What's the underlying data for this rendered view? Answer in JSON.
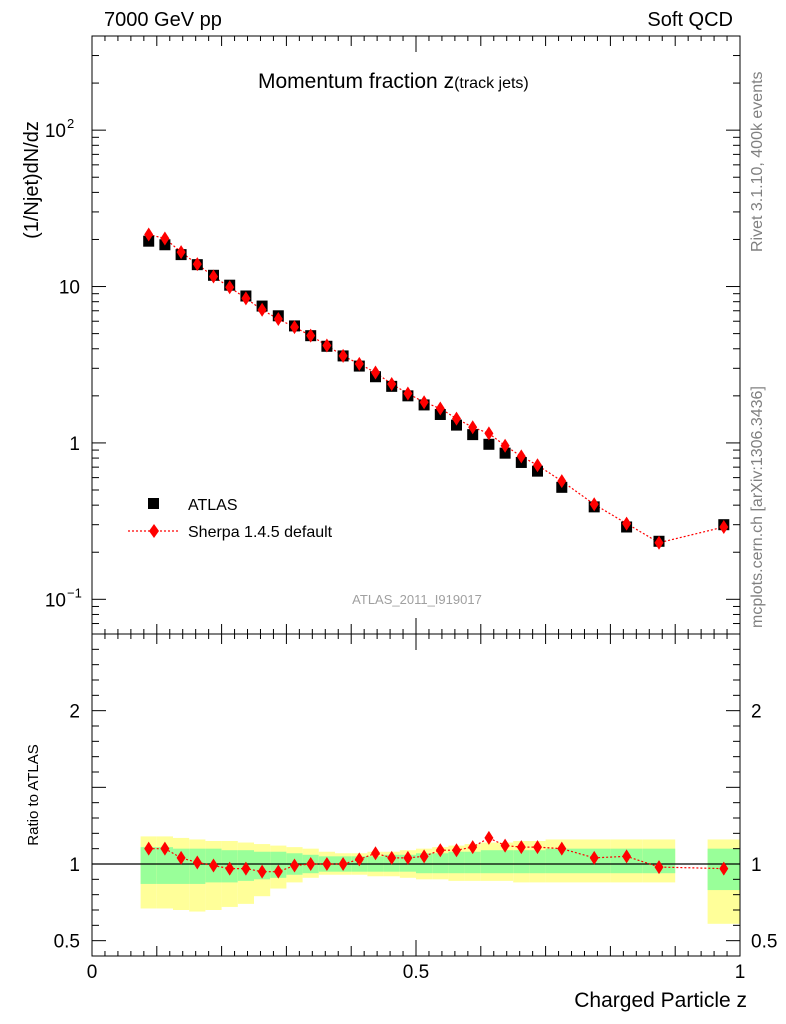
{
  "header": {
    "energy": "7000 GeV pp",
    "process": "Soft QCD"
  },
  "side": {
    "rivet": "Rivet 3.1.10,  400k events",
    "source": "mcplots.cern.ch [arXiv:1306.3436]"
  },
  "legend": {
    "data_label": "ATLAS",
    "mc_label": "Sherpa 1.4.5 default"
  },
  "ref_name": "ATLAS_2011_I919017",
  "colors": {
    "data": "#000000",
    "mc": "#ff0000",
    "band_inner": "#99ff99",
    "band_outer": "#ffff99"
  },
  "chart_data": [
    {
      "type": "scatter",
      "title_main": "Momentum fraction ",
      "title_z": "z",
      "title_sub": "(track jets)",
      "ylabel": "(1/Njet)dN/dz",
      "xlabel": "Charged Particle z",
      "yscale": "log",
      "xlim": [
        0,
        1
      ],
      "ylim": [
        0.06,
        400
      ],
      "xticks": [
        {
          "v": 0,
          "label": "0"
        },
        {
          "v": 0.5,
          "label": "0.5"
        },
        {
          "v": 1,
          "label": "1"
        }
      ],
      "yticks": [
        {
          "v": 0.1,
          "base": "10",
          "exp": "−1"
        },
        {
          "v": 1,
          "label": "1"
        },
        {
          "v": 10,
          "label": "10"
        },
        {
          "v": 100,
          "base": "10",
          "exp": "2"
        }
      ],
      "x": [
        0.0875,
        0.1125,
        0.1375,
        0.1625,
        0.1875,
        0.2125,
        0.2375,
        0.2625,
        0.2875,
        0.3125,
        0.3375,
        0.3625,
        0.3875,
        0.4125,
        0.4375,
        0.4625,
        0.4875,
        0.5125,
        0.5375,
        0.5625,
        0.5875,
        0.6125,
        0.6375,
        0.6625,
        0.6875,
        0.725,
        0.775,
        0.825,
        0.875,
        0.975
      ],
      "series": [
        {
          "name": "ATLAS",
          "values": [
            19.5,
            18.5,
            16.0,
            13.8,
            11.8,
            10.2,
            8.7,
            7.5,
            6.5,
            5.6,
            4.85,
            4.15,
            3.6,
            3.1,
            2.65,
            2.3,
            2.0,
            1.75,
            1.52,
            1.3,
            1.13,
            0.98,
            0.86,
            0.75,
            0.66,
            0.52,
            0.39,
            0.29,
            0.235,
            0.3
          ]
        },
        {
          "name": "Sherpa 1.4.5 default",
          "values": [
            21.5,
            20.3,
            16.6,
            13.9,
            11.6,
            9.9,
            8.4,
            7.1,
            6.2,
            5.5,
            4.85,
            4.2,
            3.6,
            3.2,
            2.82,
            2.38,
            2.07,
            1.82,
            1.66,
            1.43,
            1.26,
            1.15,
            0.96,
            0.82,
            0.72,
            0.57,
            0.405,
            0.305,
            0.23,
            0.29
          ]
        }
      ]
    },
    {
      "type": "scatter",
      "ylabel": "Ratio to ATLAS",
      "ylim": [
        0.4,
        2.5
      ],
      "yticks": [
        {
          "v": 0.5,
          "label": "0.5"
        },
        {
          "v": 1,
          "label": "1"
        },
        {
          "v": 2,
          "label": "2"
        }
      ],
      "bins": [
        {
          "lo": 0.075,
          "hi": 0.1,
          "in_lo": 0.87,
          "in_hi": 1.11,
          "out_lo": 0.71,
          "out_hi": 1.18
        },
        {
          "lo": 0.1,
          "hi": 0.125,
          "in_lo": 0.87,
          "in_hi": 1.11,
          "out_lo": 0.71,
          "out_hi": 1.18
        },
        {
          "lo": 0.125,
          "hi": 0.15,
          "in_lo": 0.87,
          "in_hi": 1.1,
          "out_lo": 0.7,
          "out_hi": 1.17
        },
        {
          "lo": 0.15,
          "hi": 0.175,
          "in_lo": 0.87,
          "in_hi": 1.1,
          "out_lo": 0.69,
          "out_hi": 1.16
        },
        {
          "lo": 0.175,
          "hi": 0.2,
          "in_lo": 0.88,
          "in_hi": 1.1,
          "out_lo": 0.7,
          "out_hi": 1.15
        },
        {
          "lo": 0.2,
          "hi": 0.225,
          "in_lo": 0.88,
          "in_hi": 1.09,
          "out_lo": 0.72,
          "out_hi": 1.15
        },
        {
          "lo": 0.225,
          "hi": 0.25,
          "in_lo": 0.89,
          "in_hi": 1.09,
          "out_lo": 0.74,
          "out_hi": 1.14
        },
        {
          "lo": 0.25,
          "hi": 0.275,
          "in_lo": 0.9,
          "in_hi": 1.08,
          "out_lo": 0.79,
          "out_hi": 1.13
        },
        {
          "lo": 0.275,
          "hi": 0.3,
          "in_lo": 0.91,
          "in_hi": 1.08,
          "out_lo": 0.84,
          "out_hi": 1.12
        },
        {
          "lo": 0.3,
          "hi": 0.325,
          "in_lo": 0.93,
          "in_hi": 1.07,
          "out_lo": 0.88,
          "out_hi": 1.11
        },
        {
          "lo": 0.325,
          "hi": 0.35,
          "in_lo": 0.94,
          "in_hi": 1.06,
          "out_lo": 0.91,
          "out_hi": 1.1
        },
        {
          "lo": 0.35,
          "hi": 0.375,
          "in_lo": 0.95,
          "in_hi": 1.05,
          "out_lo": 0.93,
          "out_hi": 1.08
        },
        {
          "lo": 0.375,
          "hi": 0.4,
          "in_lo": 0.95,
          "in_hi": 1.05,
          "out_lo": 0.93,
          "out_hi": 1.07
        },
        {
          "lo": 0.4,
          "hi": 0.425,
          "in_lo": 0.95,
          "in_hi": 1.05,
          "out_lo": 0.93,
          "out_hi": 1.07
        },
        {
          "lo": 0.425,
          "hi": 0.45,
          "in_lo": 0.95,
          "in_hi": 1.05,
          "out_lo": 0.92,
          "out_hi": 1.08
        },
        {
          "lo": 0.45,
          "hi": 0.475,
          "in_lo": 0.95,
          "in_hi": 1.06,
          "out_lo": 0.92,
          "out_hi": 1.08
        },
        {
          "lo": 0.475,
          "hi": 0.5,
          "in_lo": 0.95,
          "in_hi": 1.06,
          "out_lo": 0.91,
          "out_hi": 1.09
        },
        {
          "lo": 0.5,
          "hi": 0.525,
          "in_lo": 0.94,
          "in_hi": 1.07,
          "out_lo": 0.9,
          "out_hi": 1.1
        },
        {
          "lo": 0.525,
          "hi": 0.55,
          "in_lo": 0.94,
          "in_hi": 1.07,
          "out_lo": 0.9,
          "out_hi": 1.11
        },
        {
          "lo": 0.55,
          "hi": 0.575,
          "in_lo": 0.94,
          "in_hi": 1.08,
          "out_lo": 0.89,
          "out_hi": 1.12
        },
        {
          "lo": 0.575,
          "hi": 0.6,
          "in_lo": 0.94,
          "in_hi": 1.08,
          "out_lo": 0.89,
          "out_hi": 1.13
        },
        {
          "lo": 0.6,
          "hi": 0.625,
          "in_lo": 0.94,
          "in_hi": 1.09,
          "out_lo": 0.89,
          "out_hi": 1.14
        },
        {
          "lo": 0.625,
          "hi": 0.65,
          "in_lo": 0.94,
          "in_hi": 1.09,
          "out_lo": 0.89,
          "out_hi": 1.14
        },
        {
          "lo": 0.65,
          "hi": 0.675,
          "in_lo": 0.94,
          "in_hi": 1.09,
          "out_lo": 0.88,
          "out_hi": 1.15
        },
        {
          "lo": 0.675,
          "hi": 0.7,
          "in_lo": 0.94,
          "in_hi": 1.09,
          "out_lo": 0.88,
          "out_hi": 1.15
        },
        {
          "lo": 0.7,
          "hi": 0.75,
          "in_lo": 0.94,
          "in_hi": 1.1,
          "out_lo": 0.88,
          "out_hi": 1.16
        },
        {
          "lo": 0.75,
          "hi": 0.8,
          "in_lo": 0.94,
          "in_hi": 1.1,
          "out_lo": 0.88,
          "out_hi": 1.16
        },
        {
          "lo": 0.8,
          "hi": 0.85,
          "in_lo": 0.94,
          "in_hi": 1.1,
          "out_lo": 0.88,
          "out_hi": 1.16
        },
        {
          "lo": 0.85,
          "hi": 0.9,
          "in_lo": 0.94,
          "in_hi": 1.1,
          "out_lo": 0.88,
          "out_hi": 1.16
        },
        {
          "lo": 0.95,
          "hi": 1.0,
          "in_lo": 0.83,
          "in_hi": 1.1,
          "out_lo": 0.61,
          "out_hi": 1.16
        }
      ],
      "ratio": [
        1.1,
        1.1,
        1.04,
        1.01,
        0.99,
        0.97,
        0.97,
        0.95,
        0.95,
        0.99,
        1.0,
        1.0,
        1.0,
        1.03,
        1.07,
        1.04,
        1.04,
        1.05,
        1.09,
        1.09,
        1.11,
        1.17,
        1.12,
        1.11,
        1.11,
        1.1,
        1.04,
        1.05,
        0.98,
        0.97
      ],
      "ratio_err": [
        0.01,
        0.01,
        0.01,
        0.01,
        0.01,
        0.01,
        0.01,
        0.01,
        0.01,
        0.01,
        0.01,
        0.01,
        0.01,
        0.01,
        0.01,
        0.01,
        0.01,
        0.01,
        0.015,
        0.015,
        0.02,
        0.03,
        0.03,
        0.03,
        0.03,
        0.03,
        0.03,
        0.03,
        0.04,
        0.04
      ]
    }
  ]
}
